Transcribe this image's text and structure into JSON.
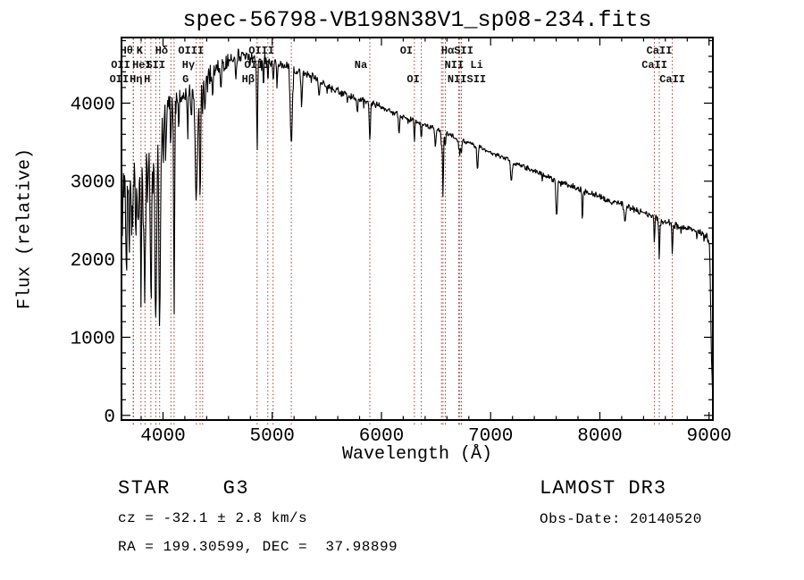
{
  "page": {
    "background": "#ffffff"
  },
  "plot": {
    "title": "spec-56798-VB198N38V1_sp08-234.fits",
    "xlabel": "Wavelength (Å)",
    "ylabel": "Flux (relative)"
  },
  "annotations": {
    "classification": "STAR    G3",
    "cz": "cz = -32.1 ± 2.8 km/s",
    "radec": "RA = 199.30599, DEC =  37.98899",
    "survey": "LAMOST DR3",
    "obs_date": "Obs-Date: 20140520"
  },
  "chart_data": {
    "type": "line",
    "title": "spec-56798-VB198N38V1_sp08-234.fits",
    "xlabel": "Wavelength (Å)",
    "ylabel": "Flux (relative)",
    "xlim": [
      3620,
      9035
    ],
    "ylim": [
      -60,
      4840
    ],
    "xticks": [
      4000,
      5000,
      6000,
      7000,
      8000,
      9000
    ],
    "yticks": [
      0,
      1000,
      2000,
      3000,
      4000
    ],
    "x_minor_step": 200,
    "y_minor_step": 200,
    "grid": false,
    "legend": false,
    "colors": {
      "trace": "#000000",
      "line_marker": "#9e3939",
      "text": "#000000"
    },
    "continuum_points": [
      [
        3620,
        2750
      ],
      [
        3650,
        3000
      ],
      [
        3700,
        3120
      ],
      [
        3760,
        3220
      ],
      [
        3820,
        3300
      ],
      [
        3880,
        3380
      ],
      [
        3940,
        3500
      ],
      [
        3980,
        3650
      ],
      [
        4020,
        3850
      ],
      [
        4060,
        3980
      ],
      [
        4110,
        4060
      ],
      [
        4160,
        4100
      ],
      [
        4210,
        4120
      ],
      [
        4260,
        4160
      ],
      [
        4310,
        4210
      ],
      [
        4360,
        4260
      ],
      [
        4420,
        4350
      ],
      [
        4480,
        4430
      ],
      [
        4540,
        4500
      ],
      [
        4620,
        4560
      ],
      [
        4700,
        4600
      ],
      [
        4780,
        4590
      ],
      [
        4860,
        4570
      ],
      [
        4940,
        4550
      ],
      [
        5020,
        4520
      ],
      [
        5100,
        4490
      ],
      [
        5180,
        4450
      ],
      [
        5260,
        4410
      ],
      [
        5340,
        4360
      ],
      [
        5420,
        4300
      ],
      [
        5500,
        4230
      ],
      [
        5600,
        4150
      ],
      [
        5700,
        4090
      ],
      [
        5800,
        4050
      ],
      [
        5900,
        4010
      ],
      [
        6000,
        3950
      ],
      [
        6100,
        3890
      ],
      [
        6200,
        3830
      ],
      [
        6300,
        3780
      ],
      [
        6400,
        3720
      ],
      [
        6500,
        3670
      ],
      [
        6600,
        3610
      ],
      [
        6700,
        3550
      ],
      [
        6800,
        3490
      ],
      [
        6900,
        3430
      ],
      [
        7000,
        3370
      ],
      [
        7100,
        3310
      ],
      [
        7200,
        3250
      ],
      [
        7300,
        3190
      ],
      [
        7400,
        3130
      ],
      [
        7500,
        3070
      ],
      [
        7600,
        3010
      ],
      [
        7700,
        2960
      ],
      [
        7800,
        2910
      ],
      [
        7900,
        2850
      ],
      [
        8000,
        2800
      ],
      [
        8100,
        2750
      ],
      [
        8200,
        2710
      ],
      [
        8300,
        2650
      ],
      [
        8400,
        2590
      ],
      [
        8500,
        2540
      ],
      [
        8600,
        2480
      ],
      [
        8700,
        2430
      ],
      [
        8800,
        2390
      ],
      [
        8900,
        2350
      ],
      [
        8960,
        2310
      ],
      [
        9000,
        2240
      ],
      [
        9008,
        1950
      ],
      [
        9016,
        1300
      ],
      [
        9024,
        700
      ],
      [
        9035,
        150
      ]
    ],
    "noise_profile": [
      [
        3620,
        550
      ],
      [
        3750,
        520
      ],
      [
        3900,
        450
      ],
      [
        4000,
        330
      ],
      [
        4100,
        250
      ],
      [
        4250,
        190
      ],
      [
        4400,
        160
      ],
      [
        4600,
        130
      ],
      [
        4800,
        110
      ],
      [
        5000,
        95
      ],
      [
        5200,
        85
      ],
      [
        5500,
        70
      ],
      [
        5900,
        60
      ],
      [
        6300,
        50
      ],
      [
        6700,
        45
      ],
      [
        7100,
        45
      ],
      [
        7500,
        50
      ],
      [
        7900,
        55
      ],
      [
        8300,
        65
      ],
      [
        8700,
        70
      ],
      [
        8960,
        75
      ],
      [
        9035,
        70
      ]
    ],
    "absorption_features": [
      [
        3665,
        900,
        5
      ],
      [
        3692,
        700,
        4
      ],
      [
        3712,
        800,
        4
      ],
      [
        3727,
        600,
        5
      ],
      [
        3750,
        1000,
        5
      ],
      [
        3771,
        1200,
        5
      ],
      [
        3798,
        1500,
        6
      ],
      [
        3820,
        800,
        4
      ],
      [
        3835,
        1800,
        6
      ],
      [
        3860,
        700,
        4
      ],
      [
        3889,
        2000,
        6
      ],
      [
        3910,
        600,
        4
      ],
      [
        3934,
        2400,
        7
      ],
      [
        3969,
        2200,
        7
      ],
      [
        4000,
        500,
        4
      ],
      [
        4026,
        600,
        4
      ],
      [
        4072,
        500,
        4
      ],
      [
        4102,
        2900,
        4
      ],
      [
        4144,
        400,
        5
      ],
      [
        4226,
        500,
        4
      ],
      [
        4260,
        400,
        5
      ],
      [
        4305,
        1400,
        11
      ],
      [
        4340,
        1500,
        5
      ],
      [
        4363,
        350,
        4
      ],
      [
        4383,
        450,
        4
      ],
      [
        4455,
        300,
        4
      ],
      [
        4531,
        300,
        5
      ],
      [
        4668,
        300,
        5
      ],
      [
        4862,
        1050,
        5
      ],
      [
        4920,
        300,
        4
      ],
      [
        4960,
        250,
        4
      ],
      [
        5008,
        280,
        4
      ],
      [
        5045,
        300,
        4
      ],
      [
        5175,
        1000,
        9
      ],
      [
        5270,
        450,
        6
      ],
      [
        5430,
        250,
        5
      ],
      [
        5780,
        200,
        5
      ],
      [
        5894,
        500,
        5
      ],
      [
        6162,
        250,
        5
      ],
      [
        6302,
        300,
        4
      ],
      [
        6365,
        180,
        4
      ],
      [
        6495,
        250,
        5
      ],
      [
        6550,
        220,
        4
      ],
      [
        6564,
        880,
        4
      ],
      [
        6585,
        200,
        4
      ],
      [
        6708,
        130,
        4
      ],
      [
        6718,
        200,
        4
      ],
      [
        6732,
        200,
        4
      ],
      [
        6880,
        300,
        6
      ],
      [
        7190,
        250,
        8
      ],
      [
        7605,
        450,
        6
      ],
      [
        7840,
        430,
        4
      ],
      [
        8230,
        200,
        8
      ],
      [
        8500,
        300,
        4
      ],
      [
        8544,
        520,
        4
      ],
      [
        8664,
        380,
        4
      ]
    ],
    "marked_lines": [
      3727,
      3730,
      3798,
      3835,
      3889,
      3934,
      3969,
      4072,
      4102,
      4305,
      4340,
      4363,
      4862,
      4960,
      5008,
      5175,
      5894,
      6302,
      6365,
      6550,
      6564,
      6585,
      6708,
      6718,
      6732,
      8500,
      8544,
      8664
    ],
    "line_labels": [
      {
        "text": "Hθ",
        "row": 1,
        "wl": 3798,
        "dx": -16
      },
      {
        "text": "K",
        "row": 1,
        "wl": 3934,
        "dx": -18
      },
      {
        "text": "Hδ",
        "row": 1,
        "wl": 4102,
        "dx": -14
      },
      {
        "text": "OIII",
        "row": 1,
        "wl": 4363,
        "dx": -13
      },
      {
        "text": "OIII",
        "row": 1,
        "wl": 5008,
        "dx": -13
      },
      {
        "text": "OI",
        "row": 1,
        "wl": 6302,
        "dx": -9
      },
      {
        "text": "HαSII",
        "row": 1,
        "wl": 6564,
        "dx": 16
      },
      {
        "text": "CaII",
        "row": 1,
        "wl": 8544,
        "dx": 0
      },
      {
        "text": "OII",
        "row": 2,
        "wl": 3727,
        "dx": -14
      },
      {
        "text": "HeI",
        "row": 2,
        "wl": 3889,
        "dx": -10
      },
      {
        "text": "SII",
        "row": 2,
        "wl": 4072,
        "dx": -17
      },
      {
        "text": "Hγ",
        "row": 2,
        "wl": 4340,
        "dx": -13
      },
      {
        "text": "OIII",
        "row": 2,
        "wl": 4960,
        "dx": -12
      },
      {
        "text": "Na",
        "row": 2,
        "wl": 5894,
        "dx": -10
      },
      {
        "text": "NII Li",
        "row": 2,
        "wl": 6550,
        "dx": 25
      },
      {
        "text": "CaII",
        "row": 2,
        "wl": 8500,
        "dx": 0
      },
      {
        "text": "OII",
        "row": 3,
        "wl": 3730,
        "dx": -16
      },
      {
        "text": "Hη",
        "row": 3,
        "wl": 3835,
        "dx": -10
      },
      {
        "text": "H",
        "row": 3,
        "wl": 3969,
        "dx": -14
      },
      {
        "text": "G",
        "row": 3,
        "wl": 4305,
        "dx": -12
      },
      {
        "text": "Hβ",
        "row": 3,
        "wl": 4862,
        "dx": -10
      },
      {
        "text": "OI",
        "row": 3,
        "wl": 6365,
        "dx": -9
      },
      {
        "text": "NIISII",
        "row": 3,
        "wl": 6585,
        "dx": 24
      },
      {
        "text": "CaII",
        "row": 3,
        "wl": 8664,
        "dx": 0
      }
    ]
  }
}
